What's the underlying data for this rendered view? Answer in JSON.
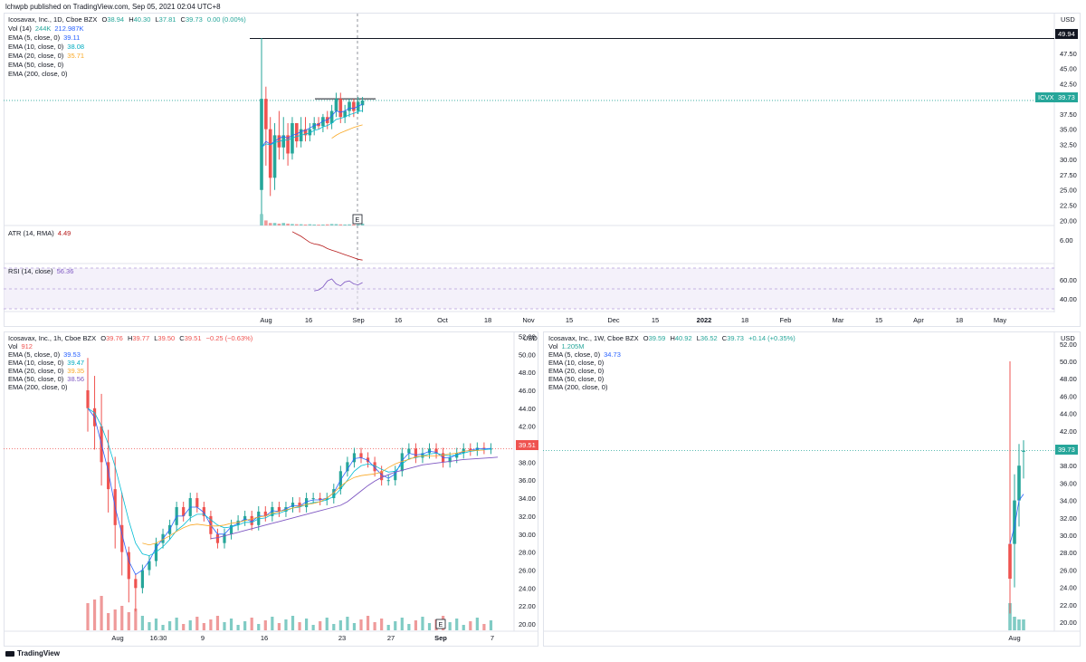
{
  "publisher": "lchwpb published on TradingView.com, Sep 05, 2021 02:04 UTC+8",
  "footer_logo": "TradingView",
  "colors": {
    "up": "#26a69a",
    "down": "#ef5350",
    "ema5": "#2962ff",
    "ema10": "#00bcd4",
    "ema20": "#f9a825",
    "ema50": "#7e57c2",
    "atr": "#b71c1c",
    "rsi": "#7e57c2"
  },
  "top": {
    "title": "Icosavax, Inc., 1D, Cboe BZX",
    "ohlc": {
      "O": "38.94",
      "H": "40.30",
      "L": "37.81",
      "C": "39.73",
      "chg": "0.00 (0.00%)"
    },
    "vol": {
      "label": "Vol (14)",
      "v1": "244K",
      "v2": "212.987K"
    },
    "ema": [
      {
        "label": "EMA (5, close, 0)",
        "value": "39.11"
      },
      {
        "label": "EMA (10, close, 0)",
        "value": "38.08"
      },
      {
        "label": "EMA (20, close, 0)",
        "value": "35.71"
      },
      {
        "label": "EMA (50, close, 0)",
        "value": ""
      },
      {
        "label": "EMA (200, close, 0)",
        "value": ""
      }
    ],
    "currency": "USD",
    "price_ticks": [
      "47.50",
      "45.00",
      "42.50",
      "37.50",
      "35.00",
      "32.50",
      "30.00",
      "27.50",
      "25.00",
      "22.50",
      "20.00"
    ],
    "high_tag": "49.94",
    "symbol_tag": "ICVX",
    "last_tag": "39.73",
    "atr": {
      "label": "ATR (14, RMA)",
      "value": "4.49",
      "tick": "6.00"
    },
    "rsi": {
      "label": "RSI (14, close)",
      "value": "56.36",
      "ticks": [
        "60.00",
        "40.00"
      ]
    },
    "time_ticks": [
      "Aug",
      "16",
      "Sep",
      "16",
      "Oct",
      "18",
      "Nov",
      "15",
      "Dec",
      "15",
      "2022",
      "18",
      "Feb",
      "Mar",
      "15",
      "Apr",
      "18",
      "May"
    ],
    "event_marker": "E"
  },
  "bottom_left": {
    "title": "Icosavax, Inc., 1h, Cboe BZX",
    "ohlc": {
      "O": "39.76",
      "H": "39.77",
      "L": "39.50",
      "C": "39.51",
      "chg": "−0.25 (−0.63%)"
    },
    "vol": {
      "label": "Vol",
      "v1": "912"
    },
    "ema": [
      {
        "label": "EMA (5, close, 0)",
        "value": "39.53"
      },
      {
        "label": "EMA (10, close, 0)",
        "value": "39.47"
      },
      {
        "label": "EMA (20, close, 0)",
        "value": "39.35"
      },
      {
        "label": "EMA (50, close, 0)",
        "value": "38.56"
      },
      {
        "label": "EMA (200, close, 0)",
        "value": ""
      }
    ],
    "currency": "USD",
    "price_ticks": [
      "52.00",
      "50.00",
      "48.00",
      "46.00",
      "44.00",
      "42.00",
      "40.00",
      "38.00",
      "36.00",
      "34.00",
      "32.00",
      "30.00",
      "28.00",
      "26.00",
      "24.00",
      "22.00",
      "20.00"
    ],
    "last_tag": "39.51",
    "time_ticks": [
      "Aug",
      "16:30",
      "9",
      "16",
      "23",
      "27",
      "Sep",
      "7"
    ],
    "event_marker": "E"
  },
  "bottom_right": {
    "title": "Icosavax, Inc., 1W, Cboe BZX",
    "ohlc": {
      "O": "39.59",
      "H": "40.92",
      "L": "36.52",
      "C": "39.73",
      "chg": "+0.14 (+0.35%)"
    },
    "vol": {
      "label": "Vol",
      "v1": "1.205M"
    },
    "ema": [
      {
        "label": "EMA (5, close, 0)",
        "value": "34.73"
      },
      {
        "label": "EMA (10, close, 0)",
        "value": ""
      },
      {
        "label": "EMA (20, close, 0)",
        "value": ""
      },
      {
        "label": "EMA (50, close, 0)",
        "value": ""
      },
      {
        "label": "EMA (200, close, 0)",
        "value": ""
      }
    ],
    "currency": "USD",
    "price_ticks": [
      "52.00",
      "50.00",
      "48.00",
      "46.00",
      "44.00",
      "42.00",
      "40.00",
      "38.00",
      "36.00",
      "34.00",
      "32.00",
      "30.00",
      "28.00",
      "26.00",
      "24.00",
      "22.00",
      "20.00"
    ],
    "last_tag": "39.73",
    "time_ticks": [
      "Aug"
    ]
  },
  "chart_data": [
    {
      "type": "candlestick",
      "title": "Icosavax, Inc., 1D, Cboe BZX",
      "ylim": [
        19,
        51
      ],
      "candles": [
        [
          25,
          50,
          21,
          40
        ],
        [
          40,
          42,
          29,
          35
        ],
        [
          35,
          37,
          24,
          27
        ],
        [
          27,
          36,
          25,
          34
        ],
        [
          34,
          38,
          30,
          32
        ],
        [
          32,
          37,
          30,
          34
        ],
        [
          34,
          36,
          29,
          31
        ],
        [
          31,
          37,
          30,
          36
        ],
        [
          36,
          36,
          32,
          33
        ],
        [
          33,
          37,
          32,
          35
        ],
        [
          35,
          37,
          33,
          34
        ],
        [
          34,
          36,
          33,
          35
        ],
        [
          35,
          37,
          34,
          36
        ],
        [
          36,
          37,
          35,
          35.5
        ],
        [
          35.5,
          37.5,
          34.5,
          37
        ],
        [
          37,
          38,
          35,
          36
        ],
        [
          36,
          39,
          35,
          38
        ],
        [
          38,
          41,
          37,
          40
        ],
        [
          40,
          41,
          36,
          37
        ],
        [
          37,
          39,
          36,
          38
        ],
        [
          38,
          40,
          37,
          39.5
        ],
        [
          39.5,
          40,
          37,
          38
        ],
        [
          38,
          40.3,
          37.5,
          39.5
        ],
        [
          38.94,
          40.3,
          37.81,
          39.73
        ]
      ],
      "volume": [
        9,
        4,
        2,
        2,
        1.5,
        2,
        1.5,
        1.2,
        1,
        1,
        0.8,
        1,
        0.8,
        0.7,
        0.8,
        0.9,
        1.2,
        1.1,
        0.9,
        0.8,
        0.9,
        0.8,
        0.9,
        1.5
      ],
      "ema5": [
        32,
        33,
        32.5,
        33,
        33.5,
        33.8,
        33.5,
        34,
        34.2,
        34.6,
        34.8,
        35.2,
        35.6,
        35.8,
        36.4,
        36.5,
        37.2,
        38,
        37.8,
        38,
        38.5,
        38.4,
        38.8,
        39.11
      ],
      "ema10": [
        32,
        32.6,
        32.4,
        32.8,
        33,
        33.2,
        33.2,
        33.6,
        33.8,
        34,
        34.2,
        34.4,
        34.8,
        35,
        35.4,
        35.6,
        36,
        36.6,
        36.8,
        37,
        37.4,
        37.6,
        37.9,
        38.08
      ],
      "ema20_x_start": 16,
      "ema20": [
        33.5,
        34,
        34.4,
        34.7,
        35,
        35.3,
        35.5,
        35.71
      ],
      "atr": [
        8.2,
        7.9,
        7.6,
        7.2,
        6.8,
        6.6,
        6.5,
        6.3,
        6.0,
        5.8,
        5.6,
        5.4,
        5.2,
        5.0,
        4.8,
        4.6,
        4.49
      ],
      "rsi": [
        48,
        49,
        52,
        58,
        60,
        55,
        53,
        57,
        58,
        55,
        54,
        56.36
      ],
      "high_line": 49.94,
      "resistance_line": 40.0
    },
    {
      "type": "candlestick",
      "title": "Icosavax, Inc., 1h, Cboe BZX",
      "ylim": [
        19,
        52
      ],
      "closes": [
        44,
        42,
        38,
        35,
        31,
        28,
        25,
        24,
        26,
        27,
        29,
        30,
        31,
        33,
        32,
        34,
        33,
        32,
        30,
        29,
        30,
        31,
        31.5,
        32,
        31,
        32.5,
        32,
        33,
        32.5,
        33,
        33.5,
        33,
        34,
        34,
        33.8,
        34,
        35,
        37,
        38,
        39,
        38.5,
        38,
        37,
        36,
        36,
        37,
        39,
        39.5,
        38.5,
        39,
        39.5,
        39,
        38,
        38.5,
        39,
        39.5,
        39.3,
        39.6,
        39.5,
        39.51
      ],
      "ema5": [
        44,
        43,
        40,
        37,
        33,
        30,
        27,
        25.5,
        26,
        27,
        28.5,
        29.5,
        30.5,
        32,
        32,
        33,
        33,
        32.4,
        31,
        30,
        30,
        30.8,
        31.2,
        31.7,
        31.4,
        32,
        32,
        32.6,
        32.5,
        32.8,
        33.2,
        33.1,
        33.6,
        33.8,
        33.8,
        34,
        34.6,
        36,
        37.2,
        38.4,
        38.5,
        38.2,
        37.4,
        36.6,
        36.2,
        36.7,
        38.2,
        39,
        38.8,
        38.9,
        39.2,
        39.1,
        38.5,
        38.5,
        38.8,
        39.2,
        39.3,
        39.5,
        39.5,
        39.53
      ],
      "ema10": [
        44,
        43.5,
        42,
        40,
        37.5,
        34.5,
        31.5,
        29,
        27.8,
        27.6,
        28,
        28.6,
        29.4,
        30.4,
        31,
        31.8,
        32.2,
        32.2,
        31.6,
        31,
        30.7,
        30.8,
        31,
        31.3,
        31.3,
        31.7,
        31.8,
        32.2,
        32.3,
        32.6,
        32.9,
        33,
        33.3,
        33.5,
        33.6,
        33.8,
        34.2,
        35,
        36,
        37,
        37.6,
        37.8,
        37.6,
        37.2,
        36.9,
        37,
        37.8,
        38.4,
        38.5,
        38.7,
        38.9,
        39,
        38.8,
        38.7,
        38.8,
        39,
        39.2,
        39.3,
        39.4,
        39.47
      ],
      "ema20_x_start": 8,
      "ema20": [
        29,
        28.8,
        29,
        29.4,
        29.8,
        30.3,
        30.7,
        31,
        31.1,
        31,
        30.9,
        30.9,
        31,
        31.2,
        31.3,
        31.5,
        31.7,
        31.9,
        32,
        32.3,
        32.5,
        32.7,
        32.9,
        33.1,
        33.3,
        33.4,
        33.6,
        34,
        34.6,
        35.3,
        35.9,
        36.3,
        36.5,
        36.6,
        36.7,
        36.9,
        37.4,
        37.8,
        38.1,
        38.3,
        38.6,
        38.7,
        38.7,
        38.7,
        38.8,
        38.9,
        39,
        39.2,
        39.3,
        39.3,
        39.35
      ],
      "ema50_x_start": 18,
      "ema50": [
        29.5,
        29.6,
        29.8,
        30,
        30.2,
        30.4,
        30.6,
        30.8,
        31,
        31.2,
        31.4,
        31.6,
        31.8,
        32,
        32.2,
        32.4,
        32.6,
        32.8,
        33,
        33.2,
        33.6,
        34.2,
        34.8,
        35.4,
        35.9,
        36.3,
        36.6,
        36.9,
        37.1,
        37.3,
        37.5,
        37.7,
        37.8,
        37.9,
        38,
        38.1,
        38.2,
        38.3,
        38.35,
        38.4,
        38.45,
        38.5,
        38.56
      ]
    },
    {
      "type": "candlestick",
      "title": "Icosavax, Inc., 1W, Cboe BZX",
      "ylim": [
        19,
        52
      ],
      "candles": [
        [
          25,
          50,
          21,
          29
        ],
        [
          29,
          37,
          24,
          34
        ],
        [
          34,
          40.5,
          31,
          38
        ],
        [
          39.59,
          40.92,
          36.52,
          39.73
        ]
      ],
      "volume": [
        10,
        5,
        4,
        4
      ],
      "ema5": [
        29,
        31,
        34,
        34.73
      ]
    }
  ]
}
